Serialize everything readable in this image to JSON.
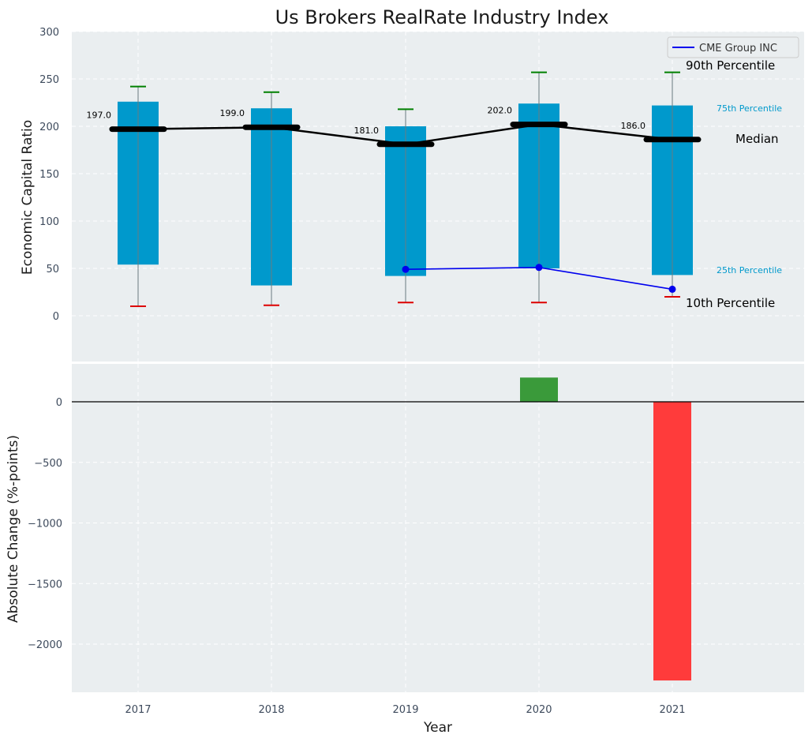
{
  "chart_data": [
    {
      "type": "bar",
      "panel": "top",
      "title": "Us Brokers RealRate Industry Index",
      "ylabel": "Economic Capital Ratio",
      "categories": [
        "2017",
        "2018",
        "2019",
        "2020",
        "2021"
      ],
      "ylim": [
        -50,
        300
      ],
      "yticks": [
        "0",
        "50",
        "100",
        "150",
        "200",
        "250",
        "300"
      ],
      "ytick_values": [
        0,
        50,
        100,
        150,
        200,
        250,
        300
      ],
      "grid": true,
      "series": [
        {
          "name": "25th Percentile",
          "values": [
            54,
            32,
            42,
            50,
            43
          ]
        },
        {
          "name": "75th Percentile",
          "values": [
            226,
            219,
            200,
            224,
            222
          ]
        },
        {
          "name": "10th Percentile",
          "values": [
            10,
            11,
            14,
            14,
            20
          ]
        },
        {
          "name": "90th Percentile",
          "values": [
            242,
            236,
            218,
            257,
            257
          ]
        },
        {
          "name": "Median",
          "values": [
            197.0,
            199.0,
            181.0,
            202.0,
            186.0
          ]
        },
        {
          "name": "CME Group INC",
          "x": [
            "2019",
            "2020",
            "2021"
          ],
          "values": [
            49,
            51,
            28
          ]
        }
      ],
      "median_labels": [
        "197.0",
        "199.0",
        "181.0",
        "202.0",
        "186.0"
      ],
      "annotations": {
        "p90": "90th Percentile",
        "p75": "75th Percentile",
        "median": "Median",
        "p25": "25th Percentile",
        "p10": "10th Percentile"
      },
      "legend": {
        "placement": "top-right",
        "entries": [
          "CME Group INC"
        ]
      },
      "colors": {
        "bar": "#0099cc",
        "median": "#000000",
        "company": "#0000ee",
        "p90": "#008000",
        "p10": "#dd0000",
        "annotation_blue": "#0099cc"
      }
    },
    {
      "type": "bar",
      "panel": "bottom",
      "xlabel": "Year",
      "ylabel": "Absolute Change (%-points)",
      "categories": [
        "2017",
        "2018",
        "2019",
        "2020",
        "2021"
      ],
      "values": [
        null,
        null,
        null,
        200,
        -2300
      ],
      "ylim": [
        -2420,
        330
      ],
      "yticks": [
        "0",
        "−500",
        "−1000",
        "−1500",
        "−2000"
      ],
      "ytick_values": [
        0,
        -500,
        -1000,
        -1500,
        -2000
      ],
      "grid": true,
      "colors": {
        "positive": "#3a9a3a",
        "negative": "#ff3b3b"
      }
    }
  ]
}
